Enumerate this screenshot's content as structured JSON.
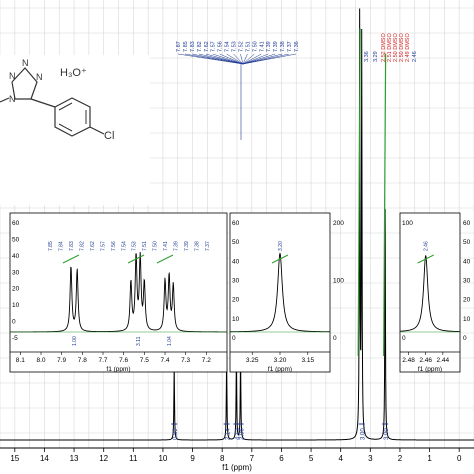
{
  "chart_data": {
    "type": "line",
    "xlabel": "f1 (ppm)",
    "xlim": [
      15.5,
      -0.5
    ],
    "x_ticks": [
      "15",
      "14",
      "13",
      "12",
      "11",
      "10",
      "9",
      "8",
      "7",
      "6",
      "5",
      "4",
      "3",
      "2",
      "1",
      "0"
    ],
    "grid": true,
    "structure": {
      "counter_ion": "H₃O⁺",
      "substituent": "Cl"
    },
    "main_spectrum": {
      "peaks": [
        {
          "ppm": 9.62,
          "height": 0.18
        },
        {
          "ppm": 7.85,
          "height": 0.2
        },
        {
          "ppm": 7.52,
          "height": 0.21
        },
        {
          "ppm": 7.38,
          "height": 0.21
        },
        {
          "ppm": 3.36,
          "height": 1.0
        },
        {
          "ppm": 3.29,
          "height": 0.95
        },
        {
          "ppm": 2.5,
          "height": 0.55
        }
      ],
      "integrals": [
        {
          "ppm": 9.62,
          "label": "0.89"
        },
        {
          "ppm": 7.85,
          "label": "2.14"
        },
        {
          "ppm": 7.52,
          "label": "4.13"
        },
        {
          "ppm": 7.38,
          "label": "2.06"
        },
        {
          "ppm": 3.29,
          "label": "3.00"
        },
        {
          "ppm": 2.5,
          "label": "3.00"
        }
      ],
      "peak_labels_aromatic": [
        "7.87",
        "7.85",
        "7.83",
        "7.82",
        "7.62",
        "7.57",
        "7.56",
        "7.54",
        "7.53",
        "7.52",
        "7.51",
        "7.50",
        "7.41",
        "7.39",
        "7.39",
        "7.38",
        "7.37",
        "7.36"
      ],
      "peak_labels_solvent": [
        "3.36",
        "3.29",
        "2.52 DMSO",
        "2.51 DMSO",
        "2.50 DMSO",
        "2.50 DMSO",
        "2.49 DMSO",
        "2.46"
      ],
      "integral_curves": [
        {
          "ppm": 10.55,
          "y0": 0.3,
          "y1": 0.34
        },
        {
          "ppm": 7.92,
          "y0": 0.29,
          "y1": 0.36
        },
        {
          "ppm": 7.62,
          "y0": 0.2,
          "y1": 0.38
        },
        {
          "ppm": 7.42,
          "y0": 0.18,
          "y1": 0.41
        },
        {
          "ppm": 3.41,
          "y0": 0.2,
          "y1": 0.98
        },
        {
          "ppm": 2.55,
          "y0": 0.2,
          "y1": 0.92
        }
      ]
    },
    "insets": [
      {
        "xlim": [
          8.15,
          7.1
        ],
        "x_ticks": [
          "8.1",
          "8.0",
          "7.9",
          "7.8",
          "7.7",
          "7.6",
          "7.5",
          "7.4",
          "7.3",
          "7.2"
        ],
        "xlabel": "f1 (ppm)",
        "y_ticks_left": [
          "60",
          "50",
          "40",
          "30",
          "20",
          "10",
          "0",
          "-5"
        ],
        "peaks": [
          {
            "ppm": 7.855,
            "height": 0.6
          },
          {
            "ppm": 7.825,
            "height": 0.57
          },
          {
            "ppm": 7.565,
            "height": 0.45
          },
          {
            "ppm": 7.54,
            "height": 0.68
          },
          {
            "ppm": 7.52,
            "height": 0.66
          },
          {
            "ppm": 7.5,
            "height": 0.44
          },
          {
            "ppm": 7.4,
            "height": 0.46
          },
          {
            "ppm": 7.38,
            "height": 0.5
          },
          {
            "ppm": 7.36,
            "height": 0.42
          }
        ],
        "peak_labels": [
          "7.85",
          "7.84",
          "7.83",
          "7.82",
          "7.62",
          "7.57",
          "7.56",
          "7.54",
          "7.53",
          "7.51",
          "7.50",
          "7.41",
          "7.39",
          "7.39",
          "7.38",
          "7.37"
        ],
        "integrals": [
          {
            "ppm": 7.84,
            "label": "1.00"
          },
          {
            "ppm": 7.53,
            "label": "3.11"
          },
          {
            "ppm": 7.38,
            "label": "1.04"
          }
        ]
      },
      {
        "xlim": [
          3.29,
          3.11
        ],
        "x_ticks": [
          "3.25",
          "3.20",
          "3.15"
        ],
        "xlabel": "f1 (ppm)",
        "y_ticks_left": [
          "60",
          "50",
          "40",
          "30",
          "20",
          "10",
          "0"
        ],
        "y_ticks_right": [
          "200",
          "100",
          "0"
        ],
        "peaks": [
          {
            "ppm": 3.2,
            "height": 0.72
          }
        ],
        "peak_labels": [
          "3.20"
        ]
      },
      {
        "xlim": [
          2.49,
          2.42
        ],
        "x_ticks": [
          "2.48",
          "2.46",
          "2.44"
        ],
        "xlabel": "f1 (ppm)",
        "y_ticks_left": [
          "100",
          "0"
        ],
        "y_ticks_right": [
          "60",
          "50",
          "40",
          "30",
          "20",
          "10",
          "0"
        ],
        "peaks": [
          {
            "ppm": 2.46,
            "height": 0.7
          }
        ],
        "peak_labels": [
          "2.46"
        ]
      }
    ]
  }
}
